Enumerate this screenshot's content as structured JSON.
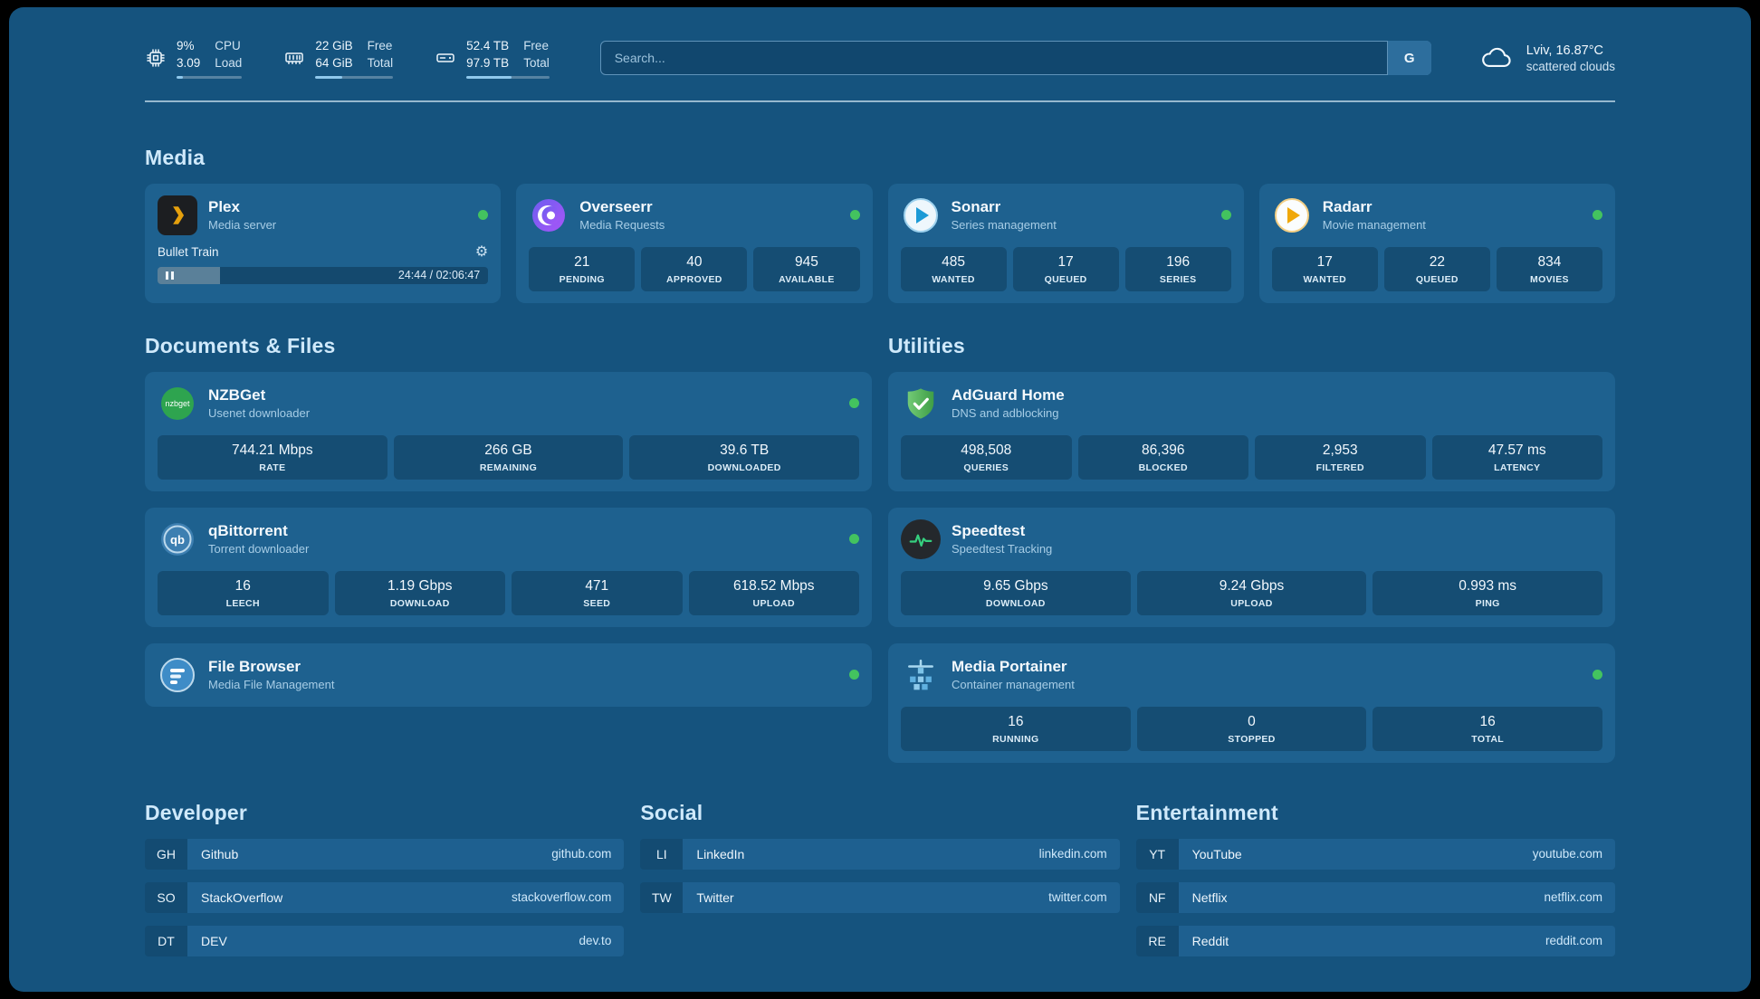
{
  "colors": {
    "background": "#15537e",
    "card": "#1e618f",
    "status_online": "#43c35f",
    "accent_text": "#cfe9fb"
  },
  "header": {
    "system": [
      {
        "icon": "cpu-icon",
        "values": [
          "9%",
          "3.09"
        ],
        "labels": [
          "CPU",
          "Load"
        ],
        "progress": 9
      },
      {
        "icon": "memory-icon",
        "values": [
          "22 GiB",
          "64 GiB"
        ],
        "labels": [
          "Free",
          "Total"
        ],
        "progress": 34
      },
      {
        "icon": "disk-icon",
        "values": [
          "52.4 TB",
          "97.9 TB"
        ],
        "labels": [
          "Free",
          "Total"
        ],
        "progress": 54
      }
    ],
    "search": {
      "placeholder": "Search...",
      "button": "G"
    },
    "weather": {
      "icon": "cloud-icon",
      "location_temp": "Lviv, 16.87°C",
      "condition": "scattered clouds"
    }
  },
  "media": {
    "title": "Media",
    "cards": [
      {
        "icon": "plex-icon",
        "name": "Plex",
        "subtitle": "Media server",
        "online": true,
        "player": {
          "title": "Bullet Train",
          "time": "24:44 / 02:06:47",
          "progress": 19
        }
      },
      {
        "icon": "overseerr-icon",
        "name": "Overseerr",
        "subtitle": "Media Requests",
        "online": true,
        "stats": [
          {
            "value": "21",
            "label": "PENDING"
          },
          {
            "value": "40",
            "label": "APPROVED"
          },
          {
            "value": "945",
            "label": "AVAILABLE"
          }
        ]
      },
      {
        "icon": "sonarr-icon",
        "name": "Sonarr",
        "subtitle": "Series management",
        "online": true,
        "stats": [
          {
            "value": "485",
            "label": "WANTED"
          },
          {
            "value": "17",
            "label": "QUEUED"
          },
          {
            "value": "196",
            "label": "SERIES"
          }
        ]
      },
      {
        "icon": "radarr-icon",
        "name": "Radarr",
        "subtitle": "Movie management",
        "online": true,
        "stats": [
          {
            "value": "17",
            "label": "WANTED"
          },
          {
            "value": "22",
            "label": "QUEUED"
          },
          {
            "value": "834",
            "label": "MOVIES"
          }
        ]
      }
    ]
  },
  "documents": {
    "title": "Documents & Files",
    "cards": [
      {
        "icon": "nzbget-icon",
        "name": "NZBGet",
        "subtitle": "Usenet downloader",
        "online": true,
        "stats": [
          {
            "value": "744.21 Mbps",
            "label": "RATE"
          },
          {
            "value": "266 GB",
            "label": "REMAINING"
          },
          {
            "value": "39.6 TB",
            "label": "DOWNLOADED"
          }
        ]
      },
      {
        "icon": "qbittorrent-icon",
        "name": "qBittorrent",
        "subtitle": "Torrent downloader",
        "online": true,
        "stats": [
          {
            "value": "16",
            "label": "LEECH"
          },
          {
            "value": "1.19 Gbps",
            "label": "DOWNLOAD"
          },
          {
            "value": "471",
            "label": "SEED"
          },
          {
            "value": "618.52 Mbps",
            "label": "UPLOAD"
          }
        ]
      },
      {
        "icon": "filebrowser-icon",
        "name": "File Browser",
        "subtitle": "Media File Management",
        "online": true
      }
    ]
  },
  "utilities": {
    "title": "Utilities",
    "cards": [
      {
        "icon": "adguard-icon",
        "name": "AdGuard Home",
        "subtitle": "DNS and adblocking",
        "stats": [
          {
            "value": "498,508",
            "label": "QUERIES"
          },
          {
            "value": "86,396",
            "label": "BLOCKED"
          },
          {
            "value": "2,953",
            "label": "FILTERED"
          },
          {
            "value": "47.57 ms",
            "label": "LATENCY"
          }
        ]
      },
      {
        "icon": "speedtest-icon",
        "name": "Speedtest",
        "subtitle": "Speedtest Tracking",
        "stats": [
          {
            "value": "9.65 Gbps",
            "label": "DOWNLOAD"
          },
          {
            "value": "9.24 Gbps",
            "label": "UPLOAD"
          },
          {
            "value": "0.993 ms",
            "label": "PING"
          }
        ]
      },
      {
        "icon": "portainer-icon",
        "name": "Media Portainer",
        "subtitle": "Container management",
        "online": true,
        "stats": [
          {
            "value": "16",
            "label": "RUNNING"
          },
          {
            "value": "0",
            "label": "STOPPED"
          },
          {
            "value": "16",
            "label": "TOTAL"
          }
        ]
      }
    ]
  },
  "bookmarks": {
    "groups": [
      {
        "title": "Developer",
        "items": [
          {
            "abbr": "GH",
            "name": "Github",
            "url": "github.com"
          },
          {
            "abbr": "SO",
            "name": "StackOverflow",
            "url": "stackoverflow.com"
          },
          {
            "abbr": "DT",
            "name": "DEV",
            "url": "dev.to"
          }
        ]
      },
      {
        "title": "Social",
        "items": [
          {
            "abbr": "LI",
            "name": "LinkedIn",
            "url": "linkedin.com"
          },
          {
            "abbr": "TW",
            "name": "Twitter",
            "url": "twitter.com"
          }
        ]
      },
      {
        "title": "Entertainment",
        "items": [
          {
            "abbr": "YT",
            "name": "YouTube",
            "url": "youtube.com"
          },
          {
            "abbr": "NF",
            "name": "Netflix",
            "url": "netflix.com"
          },
          {
            "abbr": "RE",
            "name": "Reddit",
            "url": "reddit.com"
          }
        ]
      }
    ]
  }
}
